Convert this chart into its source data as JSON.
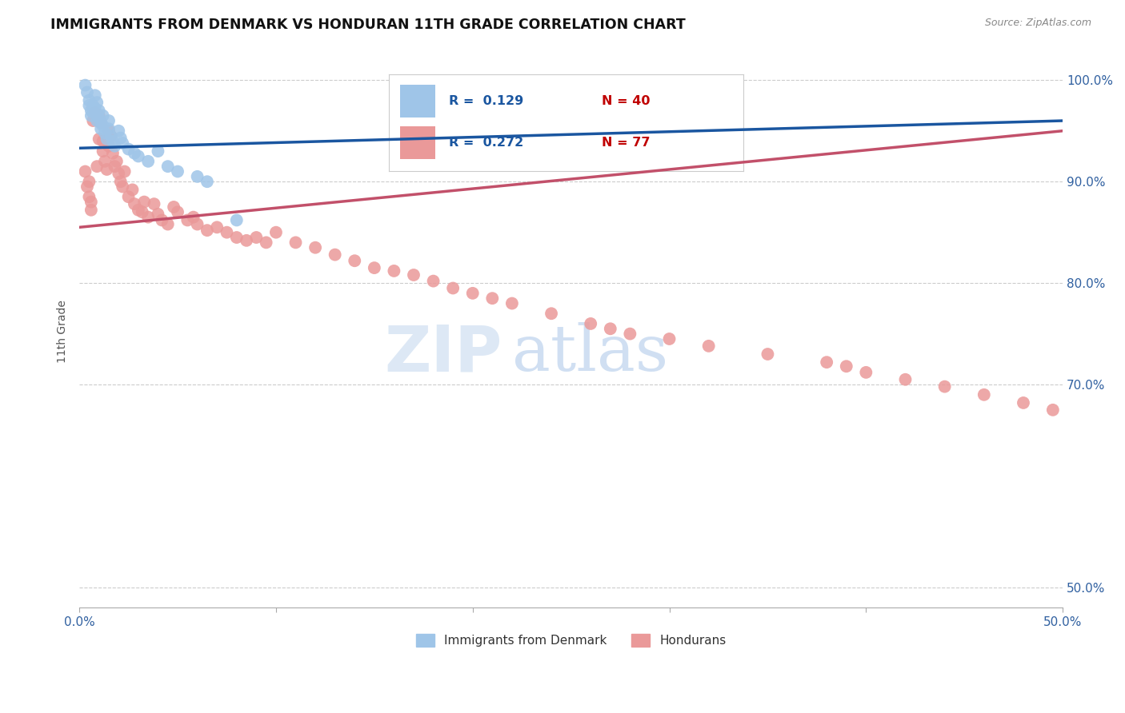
{
  "title": "IMMIGRANTS FROM DENMARK VS HONDURAN 11TH GRADE CORRELATION CHART",
  "source": "Source: ZipAtlas.com",
  "ylabel": "11th Grade",
  "xlim": [
    0.0,
    0.5
  ],
  "ylim": [
    0.48,
    1.025
  ],
  "blue_color": "#9fc5e8",
  "pink_color": "#ea9999",
  "trendline_blue": "#1a56a0",
  "trendline_pink": "#c2506a",
  "legend_R_blue": "0.129",
  "legend_N_blue": "40",
  "legend_R_pink": "0.272",
  "legend_N_pink": "77",
  "watermark_zip": "ZIP",
  "watermark_atlas": "atlas",
  "blue_points_x": [
    0.003,
    0.004,
    0.005,
    0.005,
    0.006,
    0.006,
    0.007,
    0.007,
    0.008,
    0.008,
    0.009,
    0.009,
    0.01,
    0.01,
    0.011,
    0.011,
    0.012,
    0.012,
    0.013,
    0.014,
    0.015,
    0.015,
    0.016,
    0.017,
    0.018,
    0.02,
    0.021,
    0.022,
    0.025,
    0.028,
    0.03,
    0.035,
    0.04,
    0.045,
    0.05,
    0.06,
    0.065,
    0.08,
    0.19,
    0.27
  ],
  "blue_points_y": [
    0.995,
    0.988,
    0.98,
    0.975,
    0.97,
    0.965,
    0.975,
    0.968,
    0.985,
    0.972,
    0.96,
    0.978,
    0.97,
    0.962,
    0.958,
    0.952,
    0.965,
    0.955,
    0.948,
    0.942,
    0.96,
    0.952,
    0.945,
    0.94,
    0.935,
    0.95,
    0.943,
    0.938,
    0.932,
    0.928,
    0.925,
    0.92,
    0.93,
    0.915,
    0.91,
    0.905,
    0.9,
    0.862,
    0.998,
    0.998
  ],
  "pink_points_x": [
    0.003,
    0.004,
    0.005,
    0.005,
    0.006,
    0.006,
    0.007,
    0.008,
    0.009,
    0.01,
    0.01,
    0.011,
    0.012,
    0.012,
    0.013,
    0.014,
    0.015,
    0.015,
    0.016,
    0.017,
    0.018,
    0.019,
    0.02,
    0.021,
    0.022,
    0.023,
    0.025,
    0.027,
    0.028,
    0.03,
    0.032,
    0.033,
    0.035,
    0.038,
    0.04,
    0.042,
    0.045,
    0.048,
    0.05,
    0.055,
    0.058,
    0.06,
    0.065,
    0.07,
    0.075,
    0.08,
    0.085,
    0.09,
    0.095,
    0.1,
    0.11,
    0.12,
    0.13,
    0.14,
    0.15,
    0.16,
    0.17,
    0.18,
    0.19,
    0.2,
    0.21,
    0.22,
    0.24,
    0.26,
    0.27,
    0.28,
    0.3,
    0.32,
    0.35,
    0.38,
    0.39,
    0.4,
    0.42,
    0.44,
    0.46,
    0.48,
    0.495
  ],
  "pink_points_y": [
    0.91,
    0.895,
    0.9,
    0.885,
    0.88,
    0.872,
    0.96,
    0.968,
    0.915,
    0.965,
    0.942,
    0.958,
    0.94,
    0.93,
    0.92,
    0.912,
    0.95,
    0.935,
    0.945,
    0.928,
    0.915,
    0.92,
    0.908,
    0.9,
    0.895,
    0.91,
    0.885,
    0.892,
    0.878,
    0.872,
    0.87,
    0.88,
    0.865,
    0.878,
    0.868,
    0.862,
    0.858,
    0.875,
    0.87,
    0.862,
    0.865,
    0.858,
    0.852,
    0.855,
    0.85,
    0.845,
    0.842,
    0.845,
    0.84,
    0.85,
    0.84,
    0.835,
    0.828,
    0.822,
    0.815,
    0.812,
    0.808,
    0.802,
    0.795,
    0.79,
    0.785,
    0.78,
    0.77,
    0.76,
    0.755,
    0.75,
    0.745,
    0.738,
    0.73,
    0.722,
    0.718,
    0.712,
    0.705,
    0.698,
    0.69,
    0.682,
    0.675
  ],
  "trendline_blue_x0": 0.0,
  "trendline_blue_y0": 0.933,
  "trendline_blue_x1": 0.5,
  "trendline_blue_y1": 0.96,
  "trendline_pink_x0": 0.0,
  "trendline_pink_y0": 0.855,
  "trendline_pink_x1": 0.5,
  "trendline_pink_y1": 0.95,
  "xtick_positions": [
    0.0,
    0.1,
    0.2,
    0.3,
    0.4,
    0.5
  ],
  "ytick_positions": [
    0.5,
    0.7,
    0.8,
    0.9,
    1.0
  ],
  "ytick_labels": [
    "50.0%",
    "70.0%",
    "80.0%",
    "90.0%",
    "100.0%"
  ]
}
